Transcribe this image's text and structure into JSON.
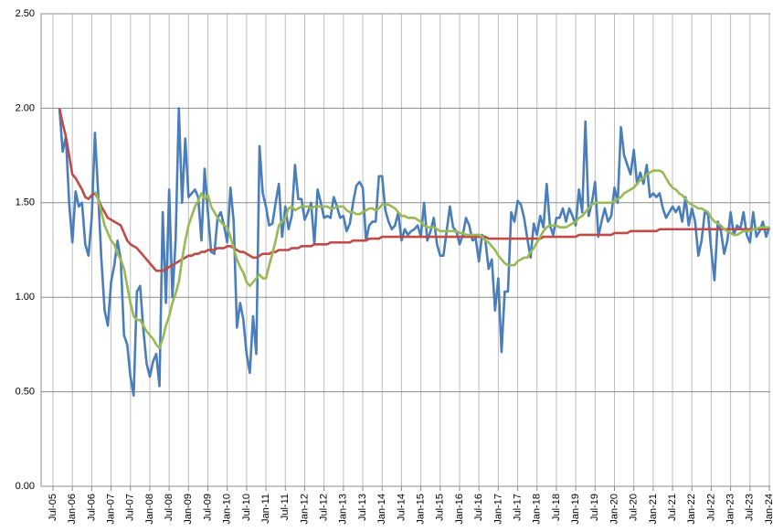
{
  "chart_data": {
    "type": "line",
    "categories": [
      "Jul-05",
      null,
      null,
      null,
      null,
      null,
      "Jan-06",
      null,
      null,
      null,
      null,
      null,
      "Jul-06",
      null,
      null,
      null,
      null,
      null,
      "Jan-07",
      null,
      null,
      null,
      null,
      null,
      "Jul-07",
      null,
      null,
      null,
      null,
      null,
      "Jan-08",
      null,
      null,
      null,
      null,
      null,
      "Jul-08",
      null,
      null,
      null,
      null,
      null,
      "Jan-09",
      null,
      null,
      null,
      null,
      null,
      "Jul-09",
      null,
      null,
      null,
      null,
      null,
      "Jan-10",
      null,
      null,
      null,
      null,
      null,
      "Jul-10",
      null,
      null,
      null,
      null,
      null,
      "Jan-11",
      null,
      null,
      null,
      null,
      null,
      "Jul-11",
      null,
      null,
      null,
      null,
      null,
      "Jan-12",
      null,
      null,
      null,
      null,
      null,
      "Jul-12",
      null,
      null,
      null,
      null,
      null,
      "Jan-13",
      null,
      null,
      null,
      null,
      null,
      "Jul-13",
      null,
      null,
      null,
      null,
      null,
      "Jan-14",
      null,
      null,
      null,
      null,
      null,
      "Jul-14",
      null,
      null,
      null,
      null,
      null,
      "Jan-15",
      null,
      null,
      null,
      null,
      null,
      "Jul-15",
      null,
      null,
      null,
      null,
      null,
      "Jan-16",
      null,
      null,
      null,
      null,
      null,
      "Jul-16",
      null,
      null,
      null,
      null,
      null,
      "Jan-17",
      null,
      null,
      null,
      null,
      null,
      "Jul-17",
      null,
      null,
      null,
      null,
      null,
      "Jan-18",
      null,
      null,
      null,
      null,
      null,
      "Jul-18",
      null,
      null,
      null,
      null,
      null,
      "Jan-19",
      null,
      null,
      null,
      null,
      null,
      "Jul-19",
      null,
      null,
      null,
      null,
      null,
      "Jan-20",
      null,
      null,
      null,
      null,
      null,
      "Jul-20",
      null,
      null,
      null,
      null,
      null,
      "Jan-21",
      null,
      null,
      null,
      null,
      null,
      "Jul-21",
      null,
      null,
      null,
      null,
      null,
      "Jan-22",
      null,
      null,
      null,
      null,
      null,
      "Jul-22",
      null,
      null,
      null,
      null,
      null,
      "Jan-23",
      null,
      null,
      null,
      null,
      null,
      "Jul-23",
      null,
      null,
      null,
      null,
      null,
      "Jan-24"
    ],
    "series": [
      {
        "color": "#4a7ebb",
        "values": [
          null,
          null,
          2.0,
          1.77,
          1.85,
          1.5,
          1.29,
          1.56,
          1.48,
          1.5,
          1.28,
          1.22,
          1.42,
          1.87,
          1.55,
          1.2,
          0.93,
          0.85,
          1.08,
          1.17,
          1.3,
          1.2,
          0.8,
          0.75,
          0.58,
          0.48,
          1.03,
          1.06,
          0.83,
          0.65,
          0.58,
          0.66,
          0.7,
          0.53,
          1.45,
          0.97,
          1.57,
          1.0,
          1.3,
          2.0,
          1.5,
          1.84,
          1.53,
          1.55,
          1.57,
          1.53,
          1.3,
          1.68,
          1.45,
          1.24,
          1.23,
          1.42,
          1.45,
          1.38,
          1.29,
          1.58,
          1.4,
          0.84,
          0.97,
          0.88,
          0.7,
          0.6,
          0.9,
          0.7,
          1.8,
          1.55,
          1.48,
          1.38,
          1.39,
          1.5,
          1.6,
          1.32,
          1.48,
          1.36,
          1.43,
          1.7,
          1.52,
          1.52,
          1.41,
          1.45,
          1.5,
          1.28,
          1.57,
          1.5,
          1.42,
          1.43,
          1.42,
          1.53,
          1.48,
          1.42,
          1.43,
          1.35,
          1.39,
          1.5,
          1.59,
          1.61,
          1.58,
          1.3,
          1.38,
          1.4,
          1.4,
          1.64,
          1.64,
          1.46,
          1.4,
          1.36,
          1.38,
          1.45,
          1.3,
          1.36,
          1.33,
          1.35,
          1.36,
          1.38,
          1.32,
          1.5,
          1.3,
          1.35,
          1.42,
          1.28,
          1.22,
          1.22,
          1.35,
          1.48,
          1.37,
          1.35,
          1.28,
          1.33,
          1.42,
          1.38,
          1.3,
          1.31,
          1.19,
          1.33,
          1.3,
          1.15,
          1.2,
          0.93,
          1.1,
          0.71,
          1.03,
          1.03,
          1.45,
          1.4,
          1.51,
          1.49,
          1.42,
          1.31,
          1.21,
          1.39,
          1.33,
          1.43,
          1.37,
          1.6,
          1.38,
          1.33,
          1.42,
          1.42,
          1.47,
          1.4,
          1.47,
          1.43,
          1.38,
          1.57,
          1.45,
          1.93,
          1.43,
          1.5,
          1.61,
          1.32,
          1.4,
          1.47,
          1.4,
          1.43,
          1.58,
          1.5,
          1.9,
          1.75,
          1.7,
          1.65,
          1.78,
          1.6,
          1.66,
          1.6,
          1.7,
          1.53,
          1.55,
          1.53,
          1.55,
          1.47,
          1.42,
          1.45,
          1.48,
          1.45,
          1.48,
          1.4,
          1.53,
          1.38,
          1.47,
          1.4,
          1.22,
          1.3,
          1.45,
          1.44,
          1.25,
          1.09,
          1.4,
          1.35,
          1.23,
          1.3,
          1.45,
          1.33,
          1.38,
          1.36,
          1.45,
          1.33,
          1.29,
          1.45,
          1.32,
          1.35,
          1.4,
          1.32,
          1.37
        ]
      },
      {
        "color": "#be4b48",
        "values": [
          null,
          null,
          2.0,
          1.92,
          1.85,
          1.75,
          1.65,
          1.63,
          1.6,
          1.57,
          1.53,
          1.52,
          1.54,
          1.55,
          1.52,
          1.48,
          1.45,
          1.42,
          1.41,
          1.4,
          1.39,
          1.38,
          1.34,
          1.3,
          1.28,
          1.27,
          1.26,
          1.24,
          1.22,
          1.2,
          1.18,
          1.16,
          1.14,
          1.14,
          1.14,
          1.15,
          1.16,
          1.17,
          1.18,
          1.19,
          1.2,
          1.21,
          1.22,
          1.22,
          1.23,
          1.23,
          1.24,
          1.24,
          1.25,
          1.25,
          1.25,
          1.26,
          1.26,
          1.26,
          1.27,
          1.27,
          1.26,
          1.25,
          1.24,
          1.24,
          1.23,
          1.22,
          1.21,
          1.21,
          1.22,
          1.23,
          1.23,
          1.23,
          1.24,
          1.24,
          1.25,
          1.25,
          1.25,
          1.25,
          1.26,
          1.26,
          1.26,
          1.27,
          1.27,
          1.27,
          1.27,
          1.28,
          1.28,
          1.28,
          1.28,
          1.28,
          1.29,
          1.29,
          1.29,
          1.29,
          1.29,
          1.29,
          1.29,
          1.3,
          1.3,
          1.3,
          1.3,
          1.3,
          1.31,
          1.31,
          1.31,
          1.31,
          1.32,
          1.32,
          1.32,
          1.32,
          1.32,
          1.32,
          1.32,
          1.32,
          1.32,
          1.32,
          1.32,
          1.32,
          1.32,
          1.32,
          1.32,
          1.32,
          1.32,
          1.32,
          1.32,
          1.32,
          1.32,
          1.32,
          1.32,
          1.32,
          1.32,
          1.32,
          1.32,
          1.32,
          1.32,
          1.32,
          1.32,
          1.32,
          1.32,
          1.31,
          1.31,
          1.31,
          1.31,
          1.31,
          1.31,
          1.31,
          1.31,
          1.31,
          1.31,
          1.31,
          1.31,
          1.31,
          1.31,
          1.31,
          1.31,
          1.31,
          1.32,
          1.32,
          1.32,
          1.32,
          1.32,
          1.32,
          1.32,
          1.32,
          1.32,
          1.32,
          1.32,
          1.33,
          1.33,
          1.33,
          1.33,
          1.33,
          1.33,
          1.33,
          1.33,
          1.33,
          1.33,
          1.33,
          1.34,
          1.34,
          1.34,
          1.34,
          1.34,
          1.35,
          1.35,
          1.35,
          1.35,
          1.35,
          1.35,
          1.35,
          1.35,
          1.35,
          1.36,
          1.36,
          1.36,
          1.36,
          1.36,
          1.36,
          1.36,
          1.36,
          1.36,
          1.36,
          1.36,
          1.36,
          1.36,
          1.36,
          1.36,
          1.36,
          1.36,
          1.36,
          1.36,
          1.36,
          1.36,
          1.36,
          1.36,
          1.36,
          1.36,
          1.36,
          1.36,
          1.36,
          1.36,
          1.36,
          1.36,
          1.36,
          1.36,
          1.36,
          1.36
        ]
      },
      {
        "color": "#98b954",
        "values": [
          null,
          null,
          null,
          null,
          null,
          null,
          null,
          null,
          null,
          null,
          null,
          null,
          null,
          1.56,
          1.52,
          1.45,
          1.38,
          1.34,
          1.3,
          1.28,
          1.23,
          1.2,
          1.15,
          1.06,
          0.97,
          0.9,
          0.88,
          0.88,
          0.85,
          0.82,
          0.8,
          0.78,
          0.75,
          0.73,
          0.78,
          0.85,
          0.9,
          0.97,
          1.02,
          1.08,
          1.2,
          1.3,
          1.38,
          1.43,
          1.48,
          1.51,
          1.55,
          1.52,
          1.54,
          1.48,
          1.45,
          1.42,
          1.4,
          1.38,
          1.37,
          1.32,
          1.26,
          1.2,
          1.16,
          1.13,
          1.08,
          1.06,
          1.08,
          1.1,
          1.12,
          1.1,
          1.1,
          1.17,
          1.23,
          1.3,
          1.38,
          1.4,
          1.42,
          1.47,
          1.48,
          1.46,
          1.47,
          1.48,
          1.48,
          1.48,
          1.47,
          1.48,
          1.48,
          1.48,
          1.48,
          1.48,
          1.47,
          1.47,
          1.48,
          1.48,
          1.48,
          1.46,
          1.45,
          1.45,
          1.44,
          1.44,
          1.45,
          1.46,
          1.47,
          1.47,
          1.46,
          1.47,
          1.49,
          1.49,
          1.49,
          1.48,
          1.47,
          1.45,
          1.43,
          1.43,
          1.42,
          1.42,
          1.42,
          1.41,
          1.4,
          1.38,
          1.37,
          1.37,
          1.37,
          1.36,
          1.35,
          1.35,
          1.35,
          1.35,
          1.35,
          1.35,
          1.34,
          1.34,
          1.33,
          1.33,
          1.33,
          1.33,
          1.33,
          1.32,
          1.3,
          1.29,
          1.27,
          1.25,
          1.22,
          1.2,
          1.18,
          1.17,
          1.17,
          1.17,
          1.19,
          1.2,
          1.21,
          1.21,
          1.24,
          1.26,
          1.29,
          1.32,
          1.35,
          1.37,
          1.38,
          1.38,
          1.38,
          1.37,
          1.37,
          1.37,
          1.38,
          1.39,
          1.4,
          1.42,
          1.43,
          1.45,
          1.47,
          1.49,
          1.5,
          1.5,
          1.5,
          1.5,
          1.5,
          1.5,
          1.51,
          1.52,
          1.53,
          1.55,
          1.56,
          1.57,
          1.58,
          1.6,
          1.62,
          1.63,
          1.65,
          1.66,
          1.67,
          1.67,
          1.67,
          1.66,
          1.63,
          1.6,
          1.58,
          1.57,
          1.55,
          1.54,
          1.52,
          1.5,
          1.49,
          1.48,
          1.47,
          1.47,
          1.46,
          1.45,
          1.42,
          1.4,
          1.39,
          1.38,
          1.36,
          1.35,
          1.34,
          1.33,
          1.33,
          1.34,
          1.35,
          1.35,
          1.35,
          1.36,
          1.36,
          1.37,
          1.37,
          1.37,
          1.37
        ]
      }
    ],
    "ylim": [
      0,
      2.5
    ],
    "yticks": [
      {
        "value": 0,
        "label": "0.00"
      },
      {
        "value": 0.5,
        "label": "0.50"
      },
      {
        "value": 1,
        "label": "1.00"
      },
      {
        "value": 1.5,
        "label": "1.50"
      },
      {
        "value": 2,
        "label": "2.00"
      },
      {
        "value": 2.5,
        "label": "2.50"
      }
    ],
    "grid": true
  }
}
